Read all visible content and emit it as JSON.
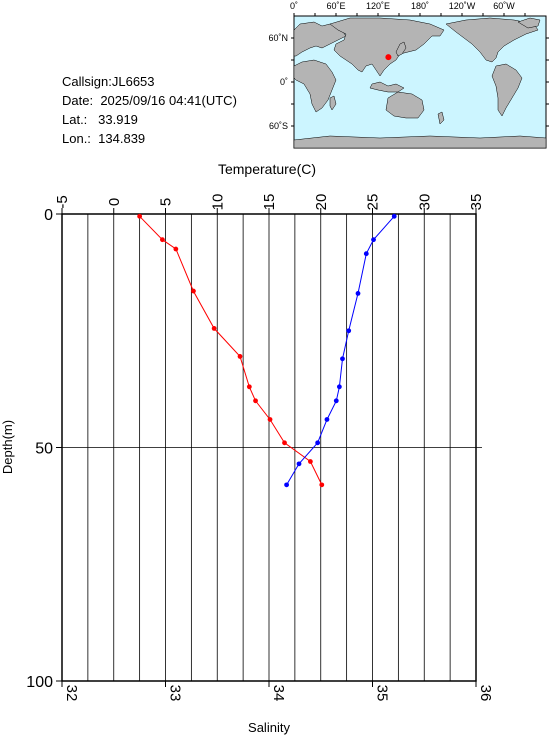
{
  "station": {
    "callsign_label": "Callsign:",
    "callsign": "JL6653",
    "date_label": "Date:",
    "date": "2025/09/16 04:41(UTC)",
    "lat_label": "Lat.:",
    "lat": "33.919",
    "lon_label": "Lon.:",
    "lon": "134.839"
  },
  "map": {
    "top_labels": [
      "0˚",
      "60˚E",
      "120˚E",
      "180˚",
      "120˚W",
      "60˚W"
    ],
    "left_labels": [
      "60˚N",
      "0˚",
      "60˚S"
    ],
    "ocean_color": "#ccf5ff",
    "land_color": "#b4b4b4",
    "marker_color": "#ff0000",
    "marker": {
      "lat": 33.919,
      "lon": 134.839
    }
  },
  "chart_data": {
    "type": "line",
    "x_top_label": "Temperature(C)",
    "x_bottom_label": "Salinity",
    "y_label": "Depth(m)",
    "temperature_range": [
      -5,
      35
    ],
    "temperature_ticks": [
      "-5",
      "0",
      "5",
      "10",
      "15",
      "20",
      "25",
      "30",
      "35"
    ],
    "salinity_range": [
      32,
      36
    ],
    "salinity_ticks": [
      "32",
      "33",
      "34",
      "35",
      "36"
    ],
    "depth_range": [
      0,
      100
    ],
    "depth_ticks": [
      "0",
      "50",
      "100"
    ],
    "grid": true,
    "series": [
      {
        "quantity": "temperature",
        "color": "#ff0000",
        "points": [
          {
            "x": 2.5,
            "depth": 0.5
          },
          {
            "x": 4.7,
            "depth": 5.5
          },
          {
            "x": 6.0,
            "depth": 7.5
          },
          {
            "x": 7.7,
            "depth": 16.5
          },
          {
            "x": 9.7,
            "depth": 24.5
          },
          {
            "x": 12.2,
            "depth": 30.5
          },
          {
            "x": 13.1,
            "depth": 37.0
          },
          {
            "x": 13.7,
            "depth": 40.0
          },
          {
            "x": 15.1,
            "depth": 44.0
          },
          {
            "x": 16.5,
            "depth": 49.0
          },
          {
            "x": 19.0,
            "depth": 53.0
          },
          {
            "x": 20.1,
            "depth": 58.0
          }
        ]
      },
      {
        "quantity": "salinity",
        "color": "#0000ff",
        "points": [
          {
            "x": 35.21,
            "depth": 0.5
          },
          {
            "x": 35.01,
            "depth": 5.5
          },
          {
            "x": 34.94,
            "depth": 8.5
          },
          {
            "x": 34.86,
            "depth": 17.0
          },
          {
            "x": 34.77,
            "depth": 25.0
          },
          {
            "x": 34.71,
            "depth": 31.0
          },
          {
            "x": 34.68,
            "depth": 37.0
          },
          {
            "x": 34.65,
            "depth": 40.0
          },
          {
            "x": 34.56,
            "depth": 44.0
          },
          {
            "x": 34.47,
            "depth": 49.0
          },
          {
            "x": 34.29,
            "depth": 53.5
          },
          {
            "x": 34.17,
            "depth": 58.0
          }
        ]
      }
    ]
  }
}
